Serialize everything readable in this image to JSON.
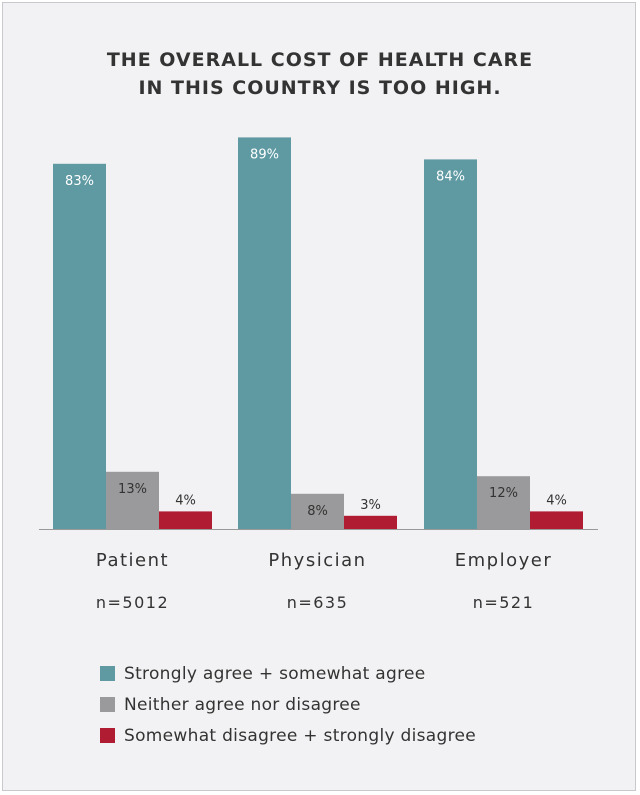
{
  "chart_data": {
    "type": "bar",
    "title_lines": [
      "THE OVERALL COST OF HEALTH CARE",
      "IN THIS COUNTRY IS TOO HIGH."
    ],
    "categories": [
      "Patient",
      "Physician",
      "Employer"
    ],
    "sample_sizes": [
      "n=5012",
      "n=635",
      "n=521"
    ],
    "series": [
      {
        "name": "Strongly agree + somewhat agree",
        "values": [
          83,
          89,
          84
        ],
        "labels": [
          "83%",
          "89%",
          "84%"
        ],
        "color": "#5f9aa3",
        "label_color": "#ffffff",
        "label_inside": true
      },
      {
        "name": "Neither agree nor disagree",
        "values": [
          13,
          8,
          12
        ],
        "labels": [
          "13%",
          "8%",
          "12%"
        ],
        "color": "#9a9a9c",
        "label_color": "#333333",
        "label_inside": true
      },
      {
        "name": "Somewhat disagree + strongly disagree",
        "values": [
          4,
          3,
          4
        ],
        "labels": [
          "4%",
          "3%",
          "4%"
        ],
        "color": "#b01c32",
        "label_color": "#333333",
        "label_inside": false
      }
    ],
    "ylim": [
      0,
      100
    ],
    "grid": false,
    "legend_position": "bottom-left"
  }
}
